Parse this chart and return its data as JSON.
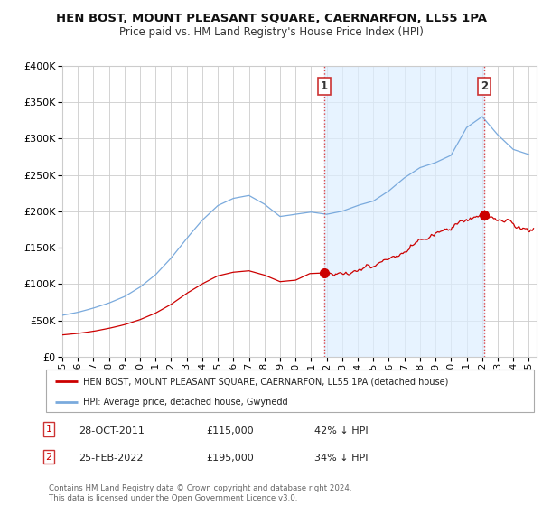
{
  "title": "HEN BOST, MOUNT PLEASANT SQUARE, CAERNARFON, LL55 1PA",
  "subtitle": "Price paid vs. HM Land Registry's House Price Index (HPI)",
  "legend_label_red": "HEN BOST, MOUNT PLEASANT SQUARE, CAERNARFON, LL55 1PA (detached house)",
  "legend_label_blue": "HPI: Average price, detached house, Gwynedd",
  "annotation1_date": "28-OCT-2011",
  "annotation1_price": "£115,000",
  "annotation1_hpi": "42% ↓ HPI",
  "annotation2_date": "25-FEB-2022",
  "annotation2_price": "£195,000",
  "annotation2_hpi": "34% ↓ HPI",
  "footer": "Contains HM Land Registry data © Crown copyright and database right 2024.\nThis data is licensed under the Open Government Licence v3.0.",
  "ylim": [
    0,
    400000
  ],
  "yticks": [
    0,
    50000,
    100000,
    150000,
    200000,
    250000,
    300000,
    350000,
    400000
  ],
  "color_red": "#cc0000",
  "color_blue": "#7aaadd",
  "color_fill": "#ddeeff",
  "color_grid": "#cccccc",
  "bg_color": "#ffffff",
  "plot_bg": "#ffffff",
  "vline_color": "#dd4444",
  "sale1_x": 2011.82,
  "sale1_y": 115000,
  "sale2_x": 2022.15,
  "sale2_y": 195000,
  "xmin": 1995.0,
  "xmax": 2025.5,
  "xtick_years": [
    1995,
    1996,
    1997,
    1998,
    1999,
    2000,
    2001,
    2002,
    2003,
    2004,
    2005,
    2006,
    2007,
    2008,
    2009,
    2010,
    2011,
    2012,
    2013,
    2014,
    2015,
    2016,
    2017,
    2018,
    2019,
    2020,
    2021,
    2022,
    2023,
    2024,
    2025
  ]
}
